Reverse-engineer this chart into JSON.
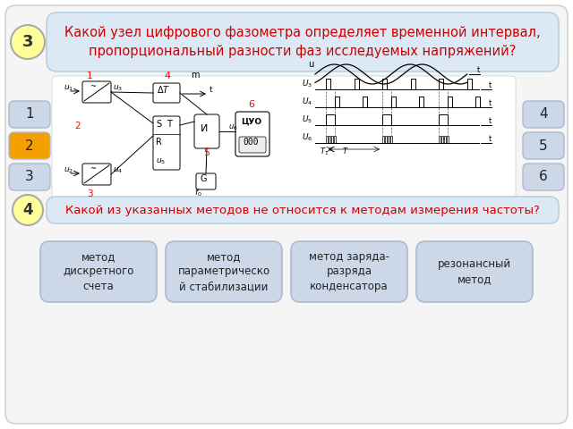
{
  "bg_color": "#ffffff",
  "slide_bg": "#f5f5f5",
  "q3_bubble_bg": "#dce9f5",
  "q3_bubble_border": "#b8cfe0",
  "q3_text": "Какой узел цифрового фазометра определяет временной интервал,\nпропорциональный разности фаз исследуемых напряжений?",
  "q3_text_color": "#cc0000",
  "q4_bubble_bg": "#dce9f5",
  "q4_bubble_border": "#b8cfe0",
  "q4_text": "Какой из указанных методов не относится к методам измерения частоты?",
  "q4_text_color": "#cc0000",
  "num_circle_bg": "#ffff99",
  "num_circle_border": "#aaaaaa",
  "btn_bg": "#ccd8e8",
  "btn_border": "#aabbcc",
  "btn_highlight_bg": "#f5a000",
  "left_btn_labels": [
    "1",
    "2",
    "3"
  ],
  "right_btn_labels": [
    "4",
    "5",
    "6"
  ],
  "bottom_btns": [
    "метод\nдискретного\nсчета",
    "метод\nпараметрическо\nй стабилизации",
    "метод заряда-\nразряда\nконденсатора",
    "резонансный\nметод"
  ]
}
